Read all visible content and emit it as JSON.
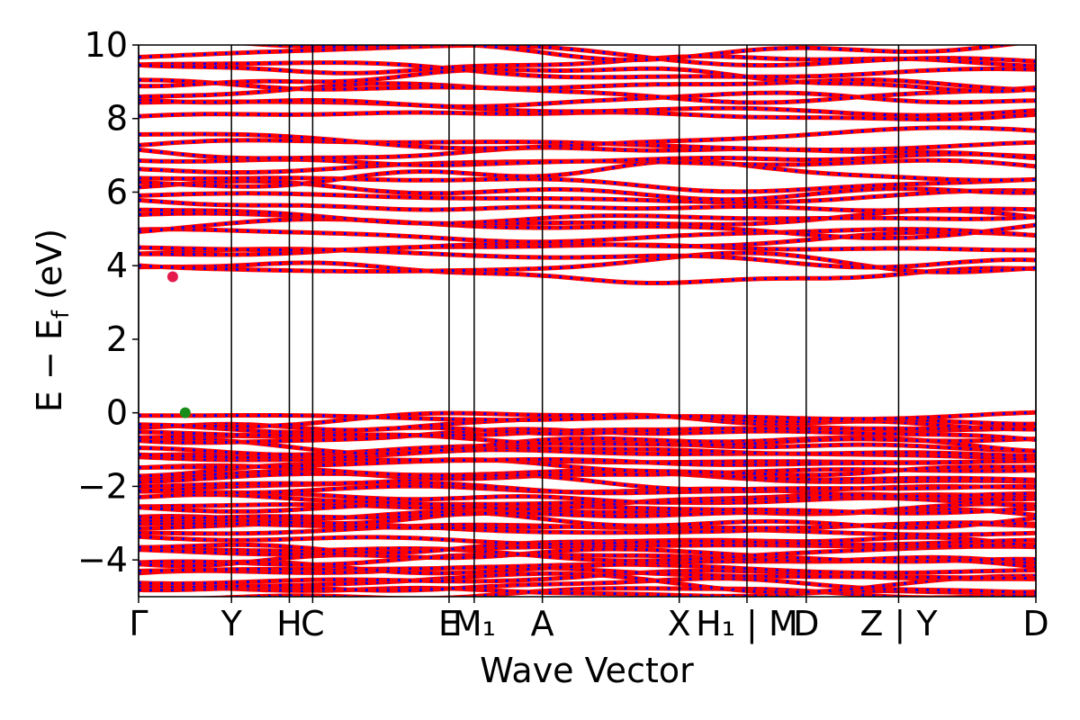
{
  "chart_data": {
    "type": "line",
    "title": "",
    "xlabel": "Wave Vector",
    "ylabel": "E − E_f (eV)",
    "ylabel_parts": {
      "main": "E − E",
      "sub": "f",
      "unit": " (eV)"
    },
    "ylim": [
      -5,
      10
    ],
    "yticks": [
      -4,
      -2,
      0,
      2,
      4,
      6,
      8,
      10
    ],
    "ytick_labels": [
      "−4",
      "−2",
      "0",
      "2",
      "4",
      "6",
      "8",
      "10"
    ],
    "xlim": [
      0,
      1
    ],
    "kpoints": [
      {
        "label": "Γ",
        "x": 0.0
      },
      {
        "label": "Y",
        "x": 0.1035
      },
      {
        "label": "H",
        "x": 0.168
      },
      {
        "label": "C",
        "x": 0.194
      },
      {
        "label": "E",
        "x": 0.346
      },
      {
        "label": "M₁",
        "x": 0.374
      },
      {
        "label": "A",
        "x": 0.45
      },
      {
        "label": "X",
        "x": 0.6025
      },
      {
        "label": "H₁ | M",
        "x": 0.678
      },
      {
        "label": "D",
        "x": 0.744
      },
      {
        "label": "Z | Y",
        "x": 0.847
      },
      {
        "label": "D",
        "x": 1.0
      }
    ],
    "band_gap": {
      "vbm": 0.0,
      "cbm": 3.7
    },
    "markers": [
      {
        "name": "CBM",
        "x": 0.038,
        "y": 3.7,
        "color": "#e6194b"
      },
      {
        "name": "VBM",
        "x": 0.052,
        "y": 0.0,
        "color": "#1a8c1a"
      }
    ],
    "series": [
      {
        "color": "#ff0000",
        "dash": "none"
      },
      {
        "color": "#0000ff",
        "dash": "dotted"
      }
    ],
    "valence_band_ranges": [
      [
        -5.0,
        -3.4
      ],
      [
        -3.3,
        -2.0
      ],
      [
        -2.0,
        0.0
      ]
    ],
    "conduction_band_ranges": [
      [
        3.7,
        7.6
      ],
      [
        8.0,
        10.0
      ]
    ],
    "grid": false
  }
}
